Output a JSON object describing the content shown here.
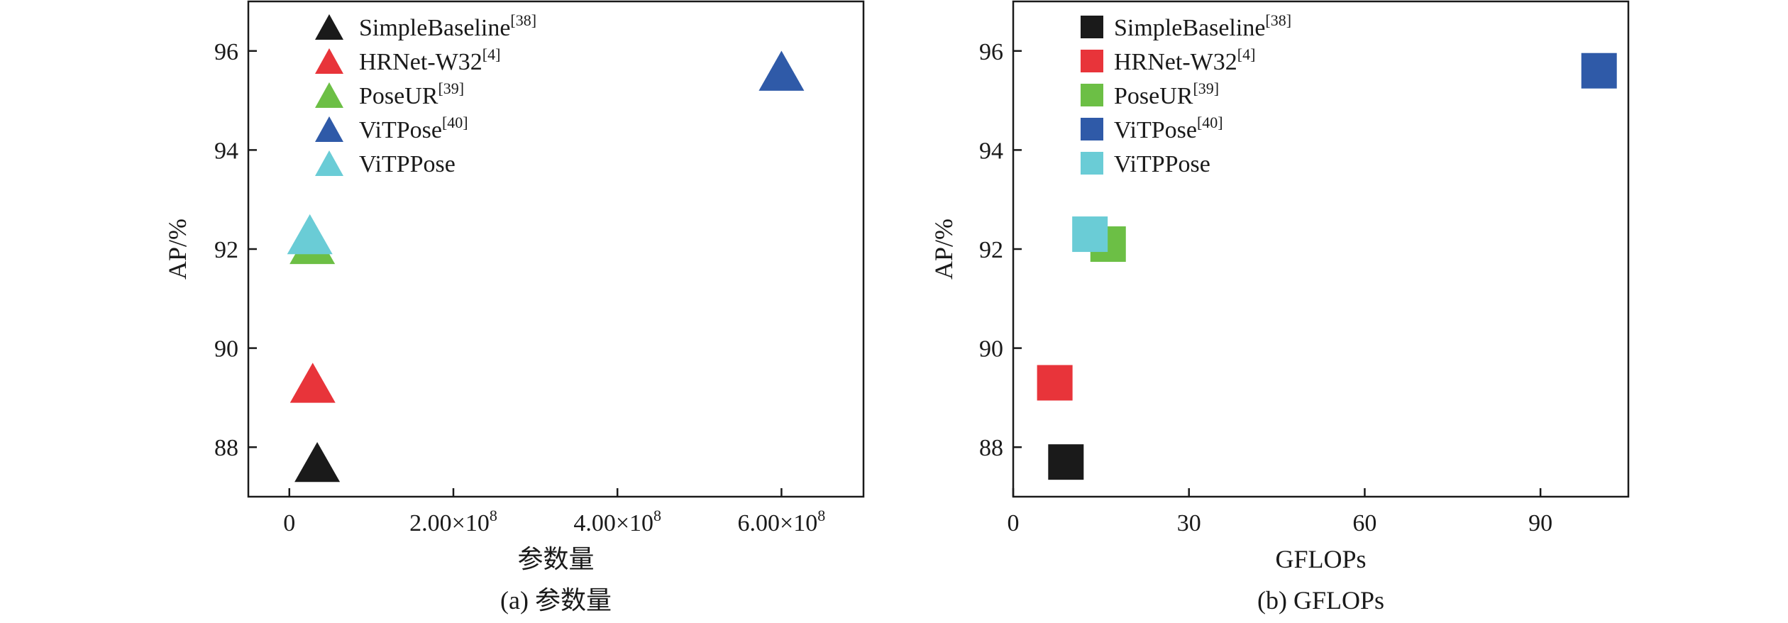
{
  "chart_data": [
    {
      "type": "scatter",
      "marker": "triangle",
      "caption": "(a) 参数量",
      "xlabel": "参数量",
      "ylabel": "AP/%",
      "xlim": [
        -50000000,
        700000000
      ],
      "ylim": [
        87,
        97
      ],
      "xticks": [
        {
          "value": 0,
          "label": "0",
          "exp": ""
        },
        {
          "value": 200000000,
          "label": "2.00×10",
          "exp": "8"
        },
        {
          "value": 400000000,
          "label": "4.00×10",
          "exp": "8"
        },
        {
          "value": 600000000,
          "label": "6.00×10",
          "exp": "8"
        }
      ],
      "yticks": [
        {
          "value": 88,
          "label": "88"
        },
        {
          "value": 90,
          "label": "90"
        },
        {
          "value": 92,
          "label": "92"
        },
        {
          "value": 94,
          "label": "94"
        },
        {
          "value": 96,
          "label": "96"
        }
      ],
      "grid": false,
      "legend_position": "top-left",
      "series": [
        {
          "name": "SimpleBaseline",
          "ref": "[38]",
          "color": "#1a1a1a",
          "x": 34000000,
          "y": 87.7
        },
        {
          "name": "HRNet-W32",
          "ref": "[4]",
          "color": "#e8343a",
          "x": 28500000,
          "y": 89.3
        },
        {
          "name": "PoseUR",
          "ref": "[39]",
          "color": "#6cbf45",
          "x": 28000000,
          "y": 92.1
        },
        {
          "name": "ViTPose",
          "ref": "[40]",
          "color": "#2f5aa8",
          "x": 600000000,
          "y": 95.6
        },
        {
          "name": "ViTPPose",
          "ref": "",
          "color": "#6accd6",
          "x": 25000000,
          "y": 92.3
        }
      ]
    },
    {
      "type": "scatter",
      "marker": "square",
      "caption": "(b) GFLOPs",
      "xlabel": "GFLOPs",
      "ylabel": "AP/%",
      "xlim": [
        0,
        105
      ],
      "ylim": [
        87,
        97
      ],
      "xticks": [
        {
          "value": 0,
          "label": "0",
          "exp": ""
        },
        {
          "value": 30,
          "label": "30",
          "exp": ""
        },
        {
          "value": 60,
          "label": "60",
          "exp": ""
        },
        {
          "value": 90,
          "label": "90",
          "exp": ""
        }
      ],
      "yticks": [
        {
          "value": 88,
          "label": "88"
        },
        {
          "value": 90,
          "label": "90"
        },
        {
          "value": 92,
          "label": "92"
        },
        {
          "value": 94,
          "label": "94"
        },
        {
          "value": 96,
          "label": "96"
        }
      ],
      "grid": false,
      "legend_position": "top-left",
      "series": [
        {
          "name": "SimpleBaseline",
          "ref": "[38]",
          "color": "#1a1a1a",
          "x": 9.0,
          "y": 87.7
        },
        {
          "name": "HRNet-W32",
          "ref": "[4]",
          "color": "#e8343a",
          "x": 7.1,
          "y": 89.3
        },
        {
          "name": "PoseUR",
          "ref": "[39]",
          "color": "#6cbf45",
          "x": 16.2,
          "y": 92.1
        },
        {
          "name": "ViTPose",
          "ref": "[40]",
          "color": "#2f5aa8",
          "x": 100.0,
          "y": 95.6
        },
        {
          "name": "ViTPPose",
          "ref": "",
          "color": "#6accd6",
          "x": 13.1,
          "y": 92.3
        }
      ]
    }
  ]
}
